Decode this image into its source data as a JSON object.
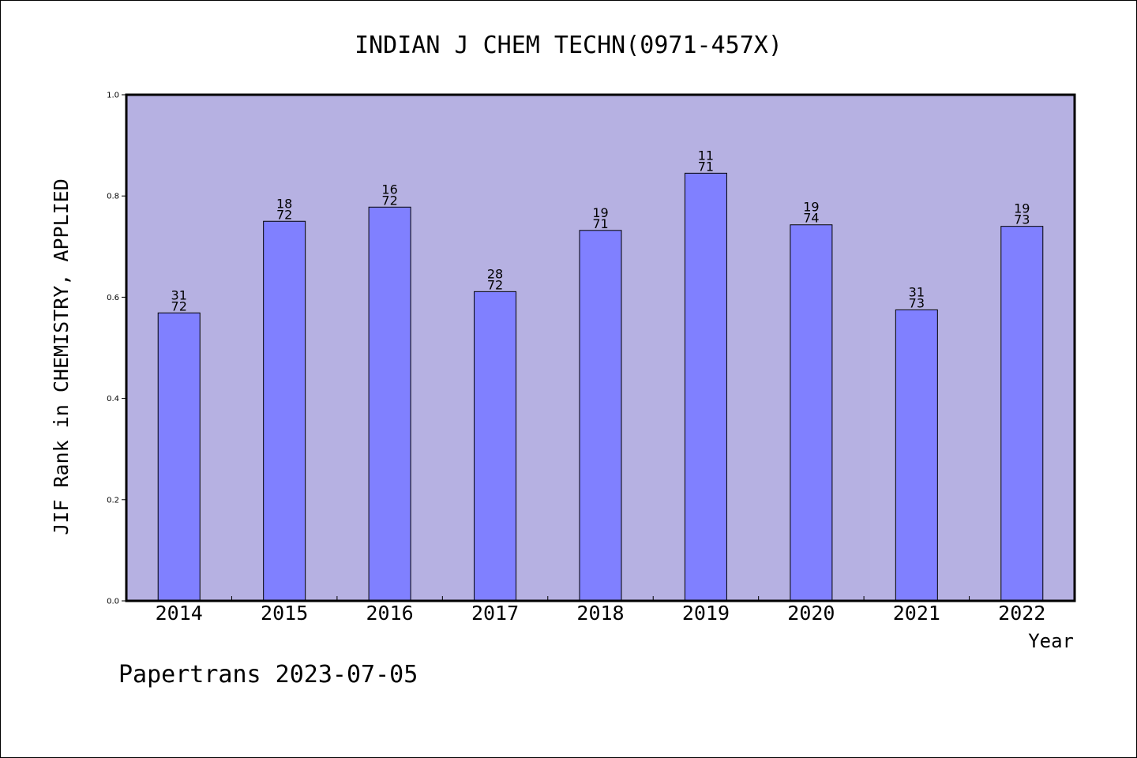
{
  "chart_data": {
    "type": "bar",
    "title": "INDIAN J CHEM TECHN(0971-457X)",
    "ylabel": "JIF Rank in CHEMISTRY, APPLIED",
    "xlabel": "Year",
    "footer": "Papertrans 2023-07-05",
    "ylim": [
      0,
      1.0
    ],
    "yticks": [
      "0.0",
      "0.2",
      "0.4",
      "0.6",
      "0.8",
      "1.0"
    ],
    "categories": [
      "2014",
      "2015",
      "2016",
      "2017",
      "2018",
      "2019",
      "2020",
      "2021",
      "2022"
    ],
    "values": [
      0.569,
      0.75,
      0.778,
      0.611,
      0.732,
      0.845,
      0.743,
      0.575,
      0.74
    ],
    "ranks": [
      {
        "rank": "31",
        "total": "72"
      },
      {
        "rank": "18",
        "total": "72"
      },
      {
        "rank": "16",
        "total": "72"
      },
      {
        "rank": "28",
        "total": "72"
      },
      {
        "rank": "19",
        "total": "71"
      },
      {
        "rank": "11",
        "total": "71"
      },
      {
        "rank": "19",
        "total": "74"
      },
      {
        "rank": "31",
        "total": "73"
      },
      {
        "rank": "19",
        "total": "73"
      }
    ],
    "grid": false,
    "legend": "none",
    "colors": {
      "plot_background": "#b6b1e2",
      "bar_fill": "#8080ff",
      "bar_stroke": "#000000",
      "axis": "#000000"
    }
  }
}
